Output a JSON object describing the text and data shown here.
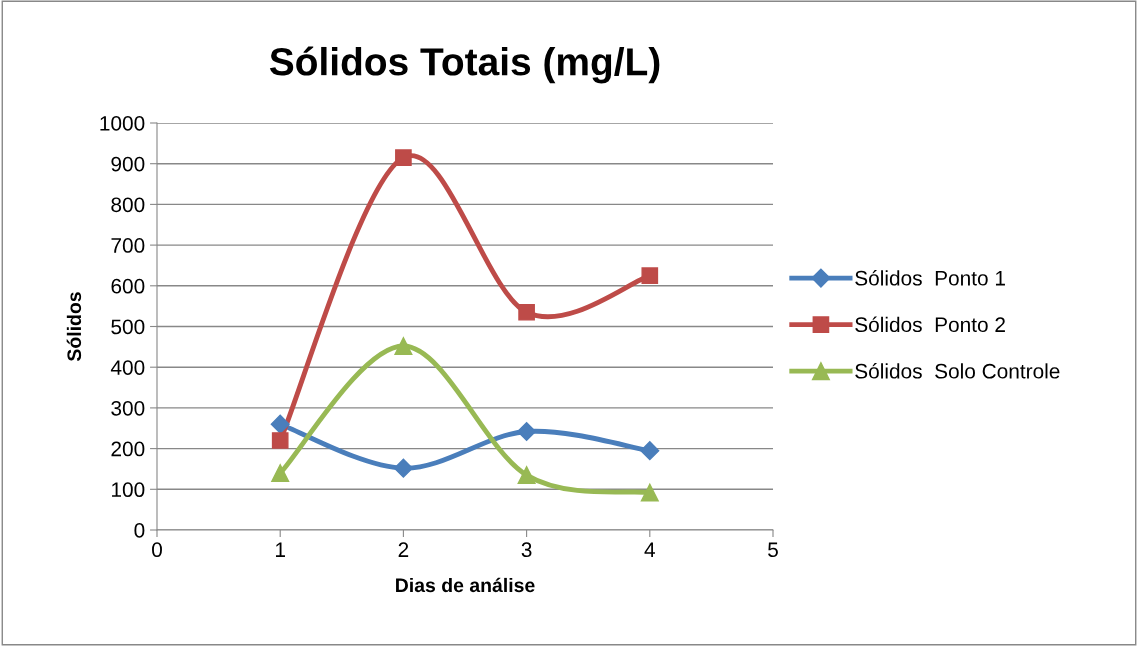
{
  "chart_data": {
    "type": "line",
    "title": "Sólidos Totais (mg/L)",
    "xlabel": "Dias de análise",
    "ylabel": "Sólidos",
    "x": [
      1,
      2,
      3,
      4
    ],
    "series": [
      {
        "name": "Sólidos  Ponto 1",
        "color": "#4a7ebb",
        "marker": "diamond",
        "values": [
          260,
          152,
          242,
          195
        ]
      },
      {
        "name": "Sólidos  Ponto 2",
        "color": "#be4b48",
        "marker": "square",
        "values": [
          220,
          915,
          535,
          625
        ]
      },
      {
        "name": "Sólidos  Solo Controle",
        "color": "#98b954",
        "marker": "triangle",
        "values": [
          140,
          452,
          135,
          92
        ]
      }
    ],
    "xlim": [
      0,
      5
    ],
    "xticks": [
      0,
      1,
      2,
      3,
      4,
      5
    ],
    "ylim": [
      0,
      1000
    ],
    "yticks": [
      0,
      100,
      200,
      300,
      400,
      500,
      600,
      700,
      800,
      900,
      1000
    ],
    "grid": "y",
    "legend": "right",
    "line_style": "solid"
  }
}
